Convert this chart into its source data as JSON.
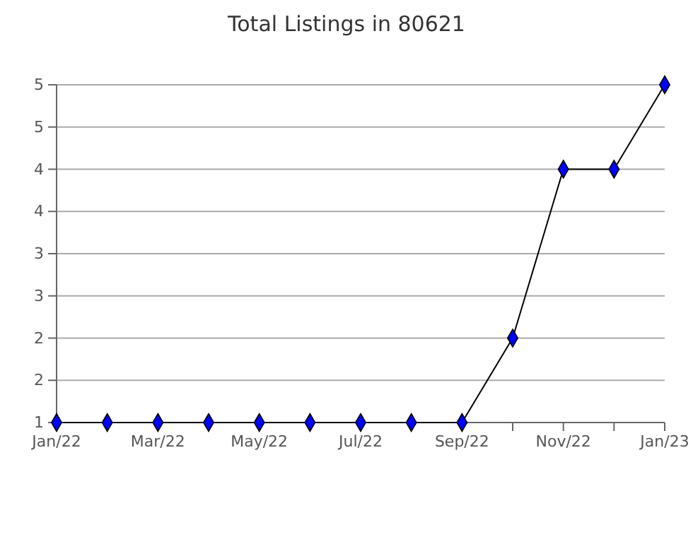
{
  "chart_data": {
    "type": "line",
    "title": "Total Listings in 80621",
    "categories": [
      "Jan/22",
      null,
      "Mar/22",
      null,
      "May/22",
      null,
      "Jul/22",
      null,
      "Sep/22",
      null,
      "Nov/22",
      null,
      "Jan/23"
    ],
    "series": [
      {
        "color": "#0000ff",
        "values": [
          1,
          1,
          1,
          1,
          1,
          1,
          1,
          1,
          1,
          2,
          4,
          4,
          5
        ]
      }
    ],
    "ylim": [
      1,
      5
    ],
    "yticks": [
      {
        "value": 1,
        "label": "1"
      },
      {
        "value": 1.5,
        "label": "2"
      },
      {
        "value": 2,
        "label": "2"
      },
      {
        "value": 2.5,
        "label": "3"
      },
      {
        "value": 3,
        "label": "3"
      },
      {
        "value": 3.5,
        "label": "4"
      },
      {
        "value": 4,
        "label": "4"
      },
      {
        "value": 4.5,
        "label": "5"
      },
      {
        "value": 5,
        "label": "5"
      }
    ],
    "grid": "y",
    "marker": "diamond",
    "line_style": "solid"
  }
}
